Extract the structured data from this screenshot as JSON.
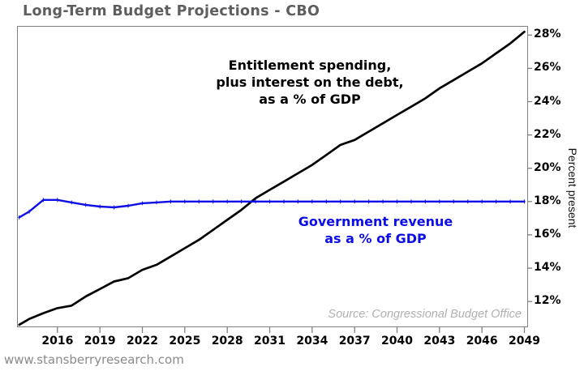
{
  "page": {
    "title": "Long-Term Budget Projections - CBO",
    "watermark": "www.stansberryresearch.com"
  },
  "chart": {
    "source_note": "Source: Congressional Budget Office",
    "y_axis_label": "Percent present",
    "annotations": {
      "black_line": [
        "Entitlement spending,",
        "plus interest on the debt,",
        "as a % of GDP"
      ],
      "blue_line": [
        "Government revenue",
        "as a % of GDP"
      ]
    },
    "colors": {
      "black_line": "#000000",
      "blue_line": "#0d0de8",
      "axis": "#7f7f7f",
      "title_text": "#5e5e5e",
      "source_text": "#b0b0b0",
      "watermark_text": "#8a8a8a"
    }
  },
  "chart_data": {
    "type": "line",
    "title": "Long-Term Budget Projections - CBO",
    "xlabel": "",
    "ylabel": "Percent present",
    "xlim": [
      2013.2,
      2049.2
    ],
    "ylim": [
      10.5,
      28.5
    ],
    "x_ticks": [
      2016,
      2019,
      2022,
      2025,
      2028,
      2031,
      2034,
      2037,
      2040,
      2043,
      2046,
      2049
    ],
    "y_ticks": [
      12,
      14,
      16,
      18,
      20,
      22,
      24,
      26,
      28
    ],
    "y_tick_suffix": "%",
    "grid": false,
    "legend": "inline-annotations",
    "axis_color": "#7f7f7f",
    "x": [
      2013.3,
      2014,
      2015,
      2016,
      2017,
      2018,
      2019,
      2020,
      2021,
      2022,
      2023,
      2024,
      2025,
      2026,
      2027,
      2028,
      2029,
      2030,
      2031,
      2032,
      2033,
      2034,
      2035,
      2036,
      2037,
      2038,
      2039,
      2040,
      2041,
      2042,
      2043,
      2044,
      2045,
      2046,
      2047,
      2048,
      2049
    ],
    "series": [
      {
        "id": "entitlement",
        "name": "Entitlement spending, plus interest on the debt, as a % of GDP",
        "color": "#000000",
        "width": 2.7,
        "values": [
          10.6,
          10.95,
          11.3,
          11.6,
          11.75,
          12.3,
          12.75,
          13.2,
          13.4,
          13.9,
          14.2,
          14.7,
          15.2,
          15.7,
          16.3,
          16.9,
          17.5,
          18.2,
          18.7,
          19.2,
          19.7,
          20.2,
          20.8,
          21.4,
          21.7,
          22.2,
          22.7,
          23.2,
          23.7,
          24.2,
          24.8,
          25.3,
          25.8,
          26.3,
          26.9,
          27.5,
          28.2
        ]
      },
      {
        "id": "revenue",
        "name": "Government revenue as a % of GDP",
        "color": "#0d0de8",
        "width": 2.4,
        "markers": "tick",
        "values": [
          17.05,
          17.4,
          18.1,
          18.1,
          17.95,
          17.8,
          17.7,
          17.65,
          17.75,
          17.9,
          17.95,
          18.0,
          18.0,
          18.0,
          18.0,
          18.0,
          18.0,
          18.0,
          18.0,
          18.0,
          18.0,
          18.0,
          18.0,
          18.0,
          18.0,
          18.0,
          18.0,
          18.0,
          18.0,
          18.0,
          18.0,
          18.0,
          18.0,
          18.0,
          18.0,
          18.0,
          18.0
        ]
      }
    ],
    "source": "Source: Congressional Budget Office"
  }
}
